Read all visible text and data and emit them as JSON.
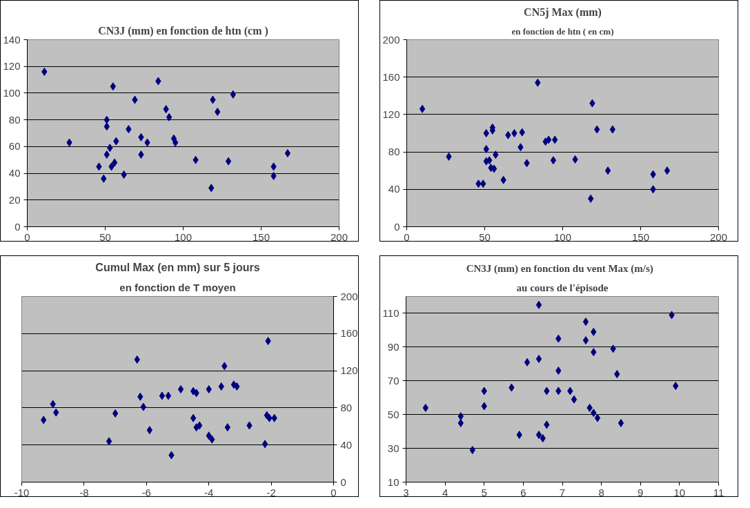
{
  "chart_data": [
    {
      "type": "scatter",
      "title": "CN3J (mm) en fonction de htn (cm )",
      "color": "#000080",
      "marker": "diamond",
      "grid": "y",
      "x": [
        11,
        27,
        51,
        51,
        55,
        69,
        84,
        46,
        49,
        51,
        53,
        54,
        56,
        57,
        62,
        65,
        73,
        73,
        77,
        89,
        91,
        94,
        95,
        108,
        118,
        119,
        122,
        129,
        132,
        158,
        158,
        167
      ],
      "values": [
        116,
        63,
        80,
        75,
        105,
        95,
        109,
        45,
        36,
        54,
        59,
        45,
        48,
        64,
        39,
        73,
        67,
        54,
        63,
        88,
        82,
        66,
        63,
        50,
        29,
        95,
        86,
        49,
        99,
        45,
        38,
        55
      ],
      "xlim": [
        0,
        200
      ],
      "xticks": [
        0,
        50,
        100,
        150,
        200
      ],
      "ylim": [
        0,
        140
      ],
      "yticks": [
        0,
        20,
        40,
        60,
        80,
        100,
        120,
        140
      ]
    },
    {
      "type": "scatter",
      "title": "CN5j Max (mm)",
      "subtitle": "en fonction de htn ( en cm)",
      "color": "#000080",
      "marker": "diamond",
      "grid": "y",
      "x": [
        10,
        27,
        46,
        49,
        51,
        51,
        51,
        53,
        54,
        55,
        55,
        56,
        57,
        62,
        65,
        69,
        74,
        73,
        77,
        84,
        89,
        91,
        95,
        94,
        108,
        118,
        119,
        122,
        132,
        129,
        158,
        158,
        167
      ],
      "values": [
        126,
        75,
        46,
        46,
        100,
        83,
        70,
        71,
        63,
        103,
        106,
        62,
        77,
        50,
        98,
        100,
        101,
        85,
        68,
        154,
        91,
        93,
        93,
        71,
        72,
        30,
        132,
        104,
        104,
        60,
        56,
        40,
        60
      ],
      "xlim": [
        0,
        200
      ],
      "xticks": [
        0,
        50,
        100,
        150,
        200
      ],
      "ylim": [
        0,
        200
      ],
      "yticks": [
        0,
        40,
        80,
        120,
        160,
        200
      ]
    },
    {
      "type": "scatter",
      "title": "Cumul Max (en mm) sur 5 jours",
      "subtitle": "en fonction de T moyen",
      "color": "#000080",
      "marker": "diamond",
      "grid": "y",
      "x": [
        -9.3,
        -9.0,
        -8.9,
        -7.2,
        -7.0,
        -6.3,
        -6.2,
        -6.1,
        -5.9,
        -5.5,
        -5.3,
        -5.2,
        -4.9,
        -4.5,
        -4.4,
        -4.5,
        -4.4,
        -4.3,
        -4.0,
        -4.0,
        -3.9,
        -3.6,
        -3.5,
        -3.4,
        -3.2,
        -3.1,
        -2.7,
        -2.2,
        -2.14,
        -2.06,
        -2.1,
        -1.9
      ],
      "values": [
        67,
        84,
        75,
        44,
        74,
        132,
        92,
        81,
        56,
        93,
        93,
        29,
        100,
        98,
        96,
        69,
        59,
        61,
        100,
        50,
        46,
        103,
        125,
        59,
        105,
        103,
        61,
        41,
        72,
        69,
        152,
        69
      ],
      "xlim": [
        -10,
        0
      ],
      "xticks": [
        -10,
        -8,
        -6,
        -4,
        -2,
        0
      ],
      "ylim": [
        0,
        200
      ],
      "yticks": [
        0,
        40,
        80,
        120,
        160,
        200
      ]
    },
    {
      "type": "scatter",
      "title": "CN3J (mm) en fonction du  vent Max  (m/s)",
      "subtitle": "au cours de l'épisode",
      "color": "#000080",
      "marker": "diamond",
      "grid": "y",
      "x": [
        3.5,
        4.4,
        4.4,
        4.7,
        5.0,
        5.0,
        5.7,
        5.9,
        6.1,
        6.4,
        6.4,
        6.4,
        6.5,
        6.6,
        6.6,
        6.9,
        6.9,
        6.9,
        7.2,
        7.3,
        7.6,
        7.6,
        7.7,
        7.8,
        7.8,
        7.8,
        7.9,
        8.3,
        8.4,
        8.5,
        9.8,
        9.9
      ],
      "values": [
        54,
        49,
        45,
        29,
        64,
        55,
        66,
        38,
        81,
        115,
        83,
        38,
        36,
        64,
        44,
        95,
        76,
        64,
        64,
        59,
        105,
        94,
        54,
        99,
        87,
        51,
        48,
        89,
        74,
        45,
        109,
        67
      ],
      "xlim": [
        3,
        11
      ],
      "xticks": [
        3,
        4,
        5,
        6,
        7,
        8,
        9,
        10,
        11
      ],
      "ylim": [
        10,
        120
      ],
      "yticks": [
        10,
        30,
        50,
        70,
        90,
        110
      ]
    }
  ]
}
